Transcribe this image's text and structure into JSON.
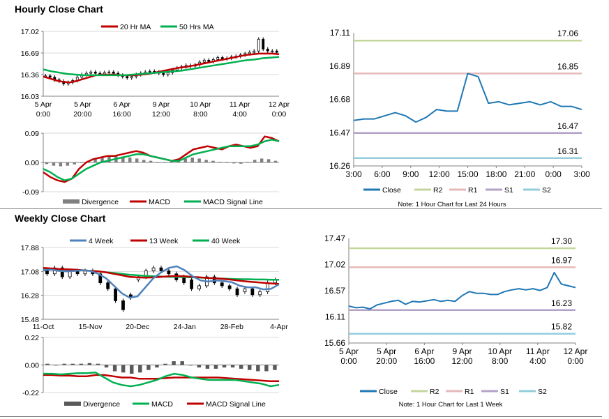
{
  "sections": {
    "hourly_title": "Hourly Close Chart",
    "weekly_title": "Weekly Close Chart"
  },
  "colors": {
    "red": "#C00000",
    "green": "#00B050",
    "blue": "#4F81BD",
    "close": "#1F77B4",
    "r2": "#C3D69B",
    "r1": "#E6B9B8",
    "s1": "#B3A2C7",
    "s2": "#93CDDD",
    "grid": "#D9D9D9",
    "bar": "#808080"
  },
  "chart_data": [
    {
      "id": "hourly_price",
      "type": "candlestick",
      "legend": [
        "20 Hr MA",
        "50 Hrs MA"
      ],
      "y_ticks": [
        "17.02",
        "16.69",
        "16.36",
        "16.03"
      ],
      "ylim": [
        16.03,
        17.02
      ],
      "x_ticks": [
        [
          "5 Apr",
          "0:00"
        ],
        [
          "5 Apr",
          "20:00"
        ],
        [
          "6 Apr",
          "16:00"
        ],
        [
          "9 Apr",
          "12:00"
        ],
        [
          "10 Apr",
          "8:00"
        ],
        [
          "11 Apr",
          "4:00"
        ],
        [
          "12 Apr",
          "0:00"
        ]
      ],
      "close": [
        16.34,
        16.32,
        16.28,
        16.26,
        16.22,
        16.24,
        16.27,
        16.32,
        16.36,
        16.38,
        16.4,
        16.38,
        16.37,
        16.39,
        16.4,
        16.38,
        16.35,
        16.33,
        16.31,
        16.33,
        16.36,
        16.38,
        16.4,
        16.41,
        16.4,
        16.38,
        16.36,
        16.39,
        16.43,
        16.46,
        16.48,
        16.5,
        16.49,
        16.51,
        16.55,
        16.58,
        16.56,
        16.59,
        16.62,
        16.6,
        16.61,
        16.63,
        16.64,
        16.66,
        16.68,
        16.7,
        16.72,
        16.9,
        16.75,
        16.72,
        16.72,
        16.7
      ],
      "ma20": [
        16.33,
        16.3,
        16.27,
        16.25,
        16.24,
        16.26,
        16.29,
        16.32,
        16.35,
        16.36,
        16.36,
        16.36,
        16.35,
        16.35,
        16.35,
        16.36,
        16.37,
        16.39,
        16.41,
        16.43,
        16.45,
        16.47,
        16.48,
        16.5,
        16.52,
        16.54,
        16.56,
        16.58,
        16.6,
        16.62,
        16.64,
        16.66,
        16.67,
        16.68,
        16.68,
        16.68,
        16.67
      ],
      "ma50": [
        16.44,
        16.41,
        16.39,
        16.37,
        16.36,
        16.35,
        16.35,
        16.35,
        16.35,
        16.35,
        16.35,
        16.36,
        16.37,
        16.38,
        16.39,
        16.4,
        16.41,
        16.42,
        16.44,
        16.46,
        16.48,
        16.5,
        16.52,
        16.54,
        16.56,
        16.58,
        16.59,
        16.61,
        16.62,
        16.63
      ]
    },
    {
      "id": "hourly_macd",
      "type": "bar+line",
      "legend": [
        "Divergence",
        "MACD",
        "MACD Signal Line"
      ],
      "y_ticks": [
        "0.09",
        "0.00",
        "-0.09"
      ],
      "ylim": [
        -0.09,
        0.09
      ],
      "macd": [
        -0.03,
        -0.045,
        -0.055,
        -0.06,
        -0.05,
        -0.02,
        0.0,
        0.01,
        0.015,
        0.02,
        0.02,
        0.025,
        0.03,
        0.035,
        0.03,
        0.02,
        0.015,
        0.01,
        0.005,
        0.01,
        0.025,
        0.04,
        0.045,
        0.05,
        0.045,
        0.04,
        0.05,
        0.055,
        0.05,
        0.045,
        0.05,
        0.08,
        0.075,
        0.065
      ],
      "signal": [
        -0.02,
        -0.03,
        -0.045,
        -0.055,
        -0.05,
        -0.035,
        -0.02,
        -0.01,
        0.0,
        0.005,
        0.01,
        0.015,
        0.02,
        0.025,
        0.025,
        0.02,
        0.015,
        0.01,
        0.005,
        0.005,
        0.015,
        0.025,
        0.03,
        0.035,
        0.04,
        0.045,
        0.05,
        0.05,
        0.05,
        0.05,
        0.055,
        0.065,
        0.07,
        0.065
      ],
      "divergence": [
        -0.005,
        -0.01,
        -0.012,
        -0.01,
        -0.006,
        0.0,
        0.005,
        0.01,
        0.014,
        0.018,
        0.02,
        0.018,
        0.015,
        0.012,
        0.008,
        0.005,
        0.0,
        0.0,
        0.003,
        0.008,
        0.012,
        0.015,
        0.012,
        0.008,
        0.005,
        0.002,
        0.0,
        -0.003,
        -0.004,
        0.0,
        0.008,
        0.012,
        0.01,
        0.005
      ]
    },
    {
      "id": "hourly_pivot",
      "type": "line",
      "y_ticks": [
        "17.11",
        "16.89",
        "16.68",
        "16.47",
        "16.26"
      ],
      "ylim": [
        16.26,
        17.11
      ],
      "x_ticks": [
        "3:00",
        "6:00",
        "9:00",
        "12:00",
        "15:00",
        "18:00",
        "21:00",
        "0:00",
        "3:00"
      ],
      "close": [
        16.55,
        16.56,
        16.56,
        16.58,
        16.6,
        16.58,
        16.54,
        16.57,
        16.62,
        16.61,
        16.61,
        16.85,
        16.83,
        16.66,
        16.67,
        16.65,
        16.66,
        16.67,
        16.65,
        16.67,
        16.64,
        16.64,
        16.62
      ],
      "levels": {
        "R2": 17.06,
        "R1": 16.85,
        "S1": 16.47,
        "S2": 16.31
      },
      "level_labels": [
        "17.06",
        "16.85",
        "16.47",
        "16.31"
      ],
      "legend": [
        "Close",
        "R2",
        "R1",
        "S1",
        "S2"
      ],
      "note": "Note: 1 Hour Chart for Last 24 Hours"
    },
    {
      "id": "weekly_price",
      "type": "candlestick",
      "legend": [
        "4 Week",
        "13 Week",
        "40 Week"
      ],
      "y_ticks": [
        "17.88",
        "17.08",
        "16.28",
        "15.48"
      ],
      "ylim": [
        15.48,
        17.88
      ],
      "x_ticks": [
        "11-Oct",
        "15-Nov",
        "20-Dec",
        "24-Jan",
        "28-Feb",
        "4-Apr"
      ],
      "open": [
        17.1,
        17.0,
        17.2,
        16.9,
        17.1,
        17.0,
        17.1,
        17.0,
        16.7,
        16.5,
        16.1,
        16.3,
        16.8,
        16.9,
        17.1,
        17.2,
        17.1,
        17.0,
        16.9,
        16.8,
        16.5,
        16.6,
        16.9,
        16.7,
        16.6,
        16.5,
        16.4,
        16.5,
        16.3,
        16.4,
        16.7
      ],
      "close": [
        17.0,
        17.2,
        16.9,
        17.1,
        17.0,
        17.1,
        17.0,
        16.7,
        16.5,
        16.1,
        15.8,
        16.2,
        16.9,
        17.1,
        17.2,
        17.1,
        17.0,
        16.8,
        16.7,
        16.5,
        16.6,
        16.9,
        16.7,
        16.6,
        16.5,
        16.3,
        16.5,
        16.3,
        16.4,
        16.7,
        16.8
      ],
      "ma4": [
        17.12,
        17.14,
        17.1,
        17.08,
        17.1,
        17.12,
        17.1,
        17.0,
        16.85,
        16.6,
        16.35,
        16.2,
        16.25,
        16.55,
        16.85,
        17.05,
        17.2,
        17.25,
        17.12,
        16.92,
        16.78,
        16.74,
        16.78,
        16.76,
        16.72,
        16.6,
        16.55,
        16.55,
        16.48,
        16.5,
        16.65
      ],
      "ma13": [
        17.2,
        17.18,
        17.16,
        17.15,
        17.14,
        17.12,
        17.1,
        17.08,
        17.05,
        17.0,
        16.95,
        16.9,
        16.88,
        16.87,
        16.88,
        16.9,
        16.92,
        16.93,
        16.92,
        16.9,
        16.88,
        16.86,
        16.85,
        16.83,
        16.8,
        16.77,
        16.74,
        16.72,
        16.7,
        16.68,
        16.66
      ],
      "ma40": [
        17.15,
        17.15,
        17.15,
        17.14,
        17.13,
        17.12,
        17.1,
        17.08,
        17.05,
        17.03,
        17.0,
        16.97,
        16.95,
        16.93,
        16.92,
        16.91,
        16.9,
        16.9,
        16.89,
        16.88,
        16.87,
        16.86,
        16.85,
        16.84,
        16.83,
        16.82,
        16.82,
        16.81,
        16.81,
        16.8,
        16.8
      ]
    },
    {
      "id": "weekly_macd",
      "type": "bar+line",
      "legend": [
        "Divergence",
        "MACD",
        "MACD Signal Line"
      ],
      "y_ticks": [
        "0.22",
        "0.00",
        "-0.22"
      ],
      "ylim": [
        -0.22,
        0.22
      ],
      "divergence": [
        0.01,
        0.0,
        0.01,
        0.01,
        0.01,
        0.015,
        0.01,
        -0.02,
        -0.05,
        -0.06,
        -0.07,
        -0.06,
        -0.04,
        -0.02,
        0.01,
        0.03,
        0.03,
        0.0,
        -0.02,
        -0.03,
        -0.03,
        -0.02,
        -0.02,
        -0.03,
        -0.04,
        -0.05,
        -0.05,
        -0.04
      ],
      "macd": [
        -0.07,
        -0.07,
        -0.075,
        -0.07,
        -0.065,
        -0.065,
        -0.06,
        -0.1,
        -0.14,
        -0.16,
        -0.17,
        -0.16,
        -0.14,
        -0.12,
        -0.09,
        -0.07,
        -0.08,
        -0.1,
        -0.11,
        -0.12,
        -0.12,
        -0.12,
        -0.12,
        -0.13,
        -0.14,
        -0.15,
        -0.17,
        -0.16
      ],
      "signal": [
        -0.08,
        -0.08,
        -0.085,
        -0.085,
        -0.09,
        -0.09,
        -0.08,
        -0.08,
        -0.09,
        -0.1,
        -0.1,
        -0.11,
        -0.11,
        -0.11,
        -0.105,
        -0.1,
        -0.1,
        -0.1,
        -0.1,
        -0.1,
        -0.1,
        -0.105,
        -0.11,
        -0.115,
        -0.12,
        -0.125,
        -0.13,
        -0.13
      ]
    },
    {
      "id": "weekly_pivot",
      "type": "line",
      "y_ticks": [
        "17.47",
        "17.02",
        "16.57",
        "16.11",
        "15.66"
      ],
      "ylim": [
        15.66,
        17.47
      ],
      "x_ticks": [
        [
          "5 Apr",
          "0:00"
        ],
        [
          "5 Apr",
          "20:00"
        ],
        [
          "6 Apr",
          "16:00"
        ],
        [
          "9 Apr",
          "12:00"
        ],
        [
          "10 Apr",
          "8:00"
        ],
        [
          "11 Apr",
          "4:00"
        ],
        [
          "12 Apr",
          "0:00"
        ]
      ],
      "close": [
        16.3,
        16.27,
        16.28,
        16.25,
        16.32,
        16.35,
        16.38,
        16.4,
        16.33,
        16.38,
        16.37,
        16.39,
        16.41,
        16.38,
        16.4,
        16.38,
        16.48,
        16.55,
        16.52,
        16.52,
        16.5,
        16.5,
        16.55,
        16.58,
        16.6,
        16.58,
        16.6,
        16.57,
        16.62,
        16.88,
        16.68,
        16.65,
        16.62
      ],
      "levels": {
        "R2": 17.3,
        "R1": 16.97,
        "S1": 16.23,
        "S2": 15.82
      },
      "level_labels": [
        "17.30",
        "16.97",
        "16.23",
        "15.82"
      ],
      "legend": [
        "Close",
        "R2",
        "R1",
        "S1",
        "S2"
      ],
      "note": "Note: 1 Hour Chart for Last 1 Week"
    }
  ]
}
